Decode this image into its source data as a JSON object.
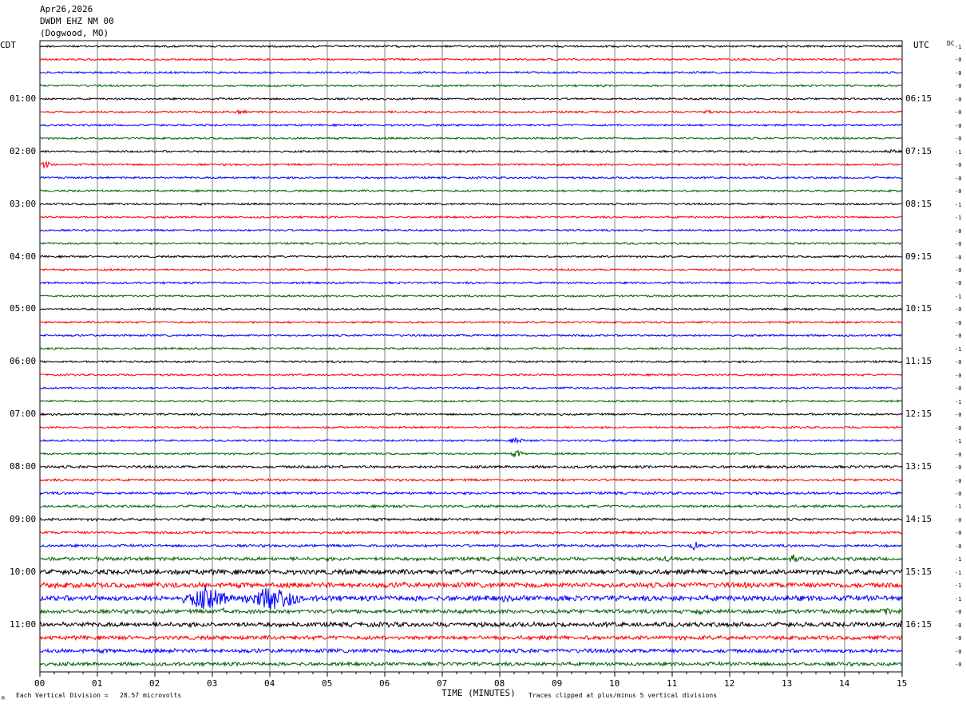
{
  "header": {
    "date": "Apr26,2026",
    "station": "DWDM EHZ NM 00",
    "location": "(Dogwood, MO)"
  },
  "left_tz": "CDT",
  "right_tz": "UTC",
  "dc_label": "DC",
  "footer": {
    "scale": "Each Vertical Division =   28.57 microvolts",
    "clip": "Traces clipped at plus/minus 5 vertical divisions",
    "corner": "M"
  },
  "colors": {
    "trace_cycle": [
      "#000000",
      "#ff0000",
      "#0000ff",
      "#006400"
    ],
    "grid": "#808080"
  },
  "chart_data": {
    "type": "line",
    "title": "",
    "xlabel": "TIME (MINUTES)",
    "ylabel": "",
    "x_range": [
      0,
      15
    ],
    "x_tick_labels": [
      "00",
      "01",
      "02",
      "03",
      "04",
      "05",
      "06",
      "07",
      "08",
      "09",
      "10",
      "11",
      "12",
      "13",
      "14",
      "15"
    ],
    "rows_per_hour": 4,
    "row_count": 48,
    "left_hour_labels": [
      "01:00",
      "02:00",
      "03:00",
      "04:00",
      "05:00",
      "06:00",
      "07:00",
      "08:00",
      "09:00",
      "10:00",
      "11:00"
    ],
    "right_hour_labels": [
      "06:15",
      "07:15",
      "08:15",
      "09:15",
      "10:15",
      "11:15",
      "12:15",
      "13:15",
      "14:15",
      "15:15",
      "16:15"
    ],
    "dc_offsets": [
      "-1",
      "-0",
      "-0",
      "-0",
      "-0",
      "-0",
      "-0",
      "-0",
      "-1",
      "-0",
      "-0",
      "-0",
      "-1",
      "-1",
      "-0",
      "-0",
      "-0",
      "-0",
      "-0",
      "-1",
      "-0",
      "-0",
      "-0",
      "-1",
      "-0",
      "-0",
      "-0",
      "-1",
      "-0",
      "-0",
      "-1",
      "-0",
      "-0",
      "-0",
      "-0",
      "-1",
      "-0",
      "-0",
      "-0",
      "-1",
      "-1",
      "-1",
      "-1",
      "-0",
      "-0",
      "-0",
      "-0",
      "-0"
    ],
    "amplitude_levels": [
      1,
      1,
      1,
      1,
      1,
      1,
      1,
      1,
      1,
      1,
      1,
      1,
      1,
      1,
      1,
      1,
      1,
      1,
      1,
      1,
      1,
      1,
      1,
      1,
      1,
      1,
      1,
      1,
      1,
      1,
      1,
      1,
      1.3,
      1.2,
      1.3,
      1.3,
      1.3,
      1.3,
      1.3,
      1.8,
      2.5,
      2.6,
      2.6,
      2,
      2.3,
      2,
      2,
      1.8
    ],
    "events": [
      {
        "row": 5,
        "minute": 3.5,
        "level": 2
      },
      {
        "row": 5,
        "minute": 11.6,
        "level": 2
      },
      {
        "row": 8,
        "minute": 14.8,
        "level": 2
      },
      {
        "row": 9,
        "minute": 0.1,
        "level": 3
      },
      {
        "row": 30,
        "minute": 8.3,
        "level": 3
      },
      {
        "row": 31,
        "minute": 8.3,
        "level": 3
      },
      {
        "row": 38,
        "minute": 11.4,
        "level": 4
      },
      {
        "row": 39,
        "minute": 13.1,
        "level": 4
      },
      {
        "row": 39,
        "minute": 10.9,
        "level": 3
      },
      {
        "row": 41,
        "minute": 6.3,
        "level": 3
      },
      {
        "row": 41,
        "minute": 12.3,
        "level": 3
      },
      {
        "row": 42,
        "minute": 2.9,
        "level": 10
      },
      {
        "row": 42,
        "minute": 4.1,
        "level": 11
      },
      {
        "row": 42,
        "minute": 3.8,
        "level": 7
      },
      {
        "row": 42,
        "minute": 8.1,
        "level": 3
      },
      {
        "row": 43,
        "minute": 3.2,
        "level": 4
      },
      {
        "row": 43,
        "minute": 11.5,
        "level": 4
      },
      {
        "row": 43,
        "minute": 14.7,
        "level": 4
      },
      {
        "row": 44,
        "minute": 15,
        "level": 4
      }
    ]
  }
}
